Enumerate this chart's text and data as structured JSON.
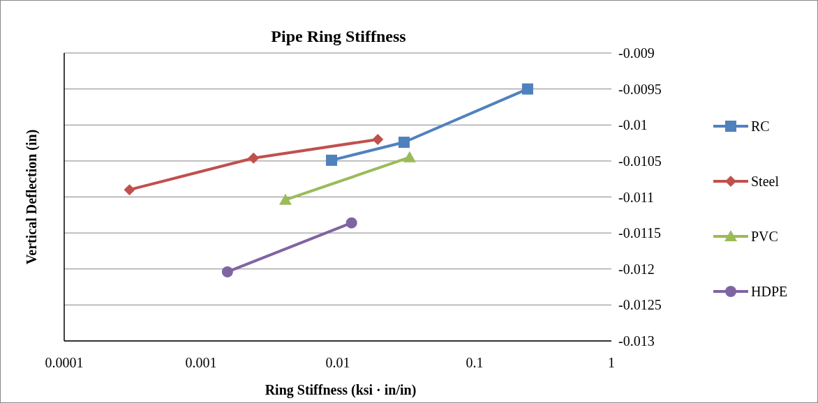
{
  "chart_data": {
    "type": "line",
    "title": "Pipe Ring Stiffness",
    "xlabel": "Ring Stiffness (ksi · in/in)",
    "ylabel": "Vertical Deflection (in)",
    "log": "x",
    "xlim": [
      0.0001,
      1
    ],
    "xticks": [
      0.0001,
      0.001,
      0.01,
      0.1,
      1
    ],
    "ylim": [
      -0.013,
      -0.009
    ],
    "yticks": [
      -0.013,
      -0.0125,
      -0.012,
      -0.0115,
      -0.011,
      -0.0105,
      -0.01,
      -0.0095,
      -0.009
    ],
    "grid": "y",
    "legend": "right",
    "series": [
      {
        "name": "RC",
        "color": "#4f81bd",
        "marker": "square",
        "x": [
          0.009,
          0.0305,
          0.244
        ],
        "values": [
          -0.01049,
          -0.01024,
          -0.0095
        ]
      },
      {
        "name": "Steel",
        "color": "#c0504d",
        "marker": "diamond",
        "x": [
          0.0003,
          0.00242,
          0.0196
        ],
        "values": [
          -0.0109,
          -0.01046,
          -0.0102
        ]
      },
      {
        "name": "PVC",
        "color": "#9bbb59",
        "marker": "triangle",
        "x": [
          0.00414,
          0.0335
        ],
        "values": [
          -0.01104,
          -0.01045
        ]
      },
      {
        "name": "HDPE",
        "color": "#8064a2",
        "marker": "circle",
        "x": [
          0.00156,
          0.0126
        ],
        "values": [
          -0.01204,
          -0.01136
        ]
      }
    ]
  }
}
